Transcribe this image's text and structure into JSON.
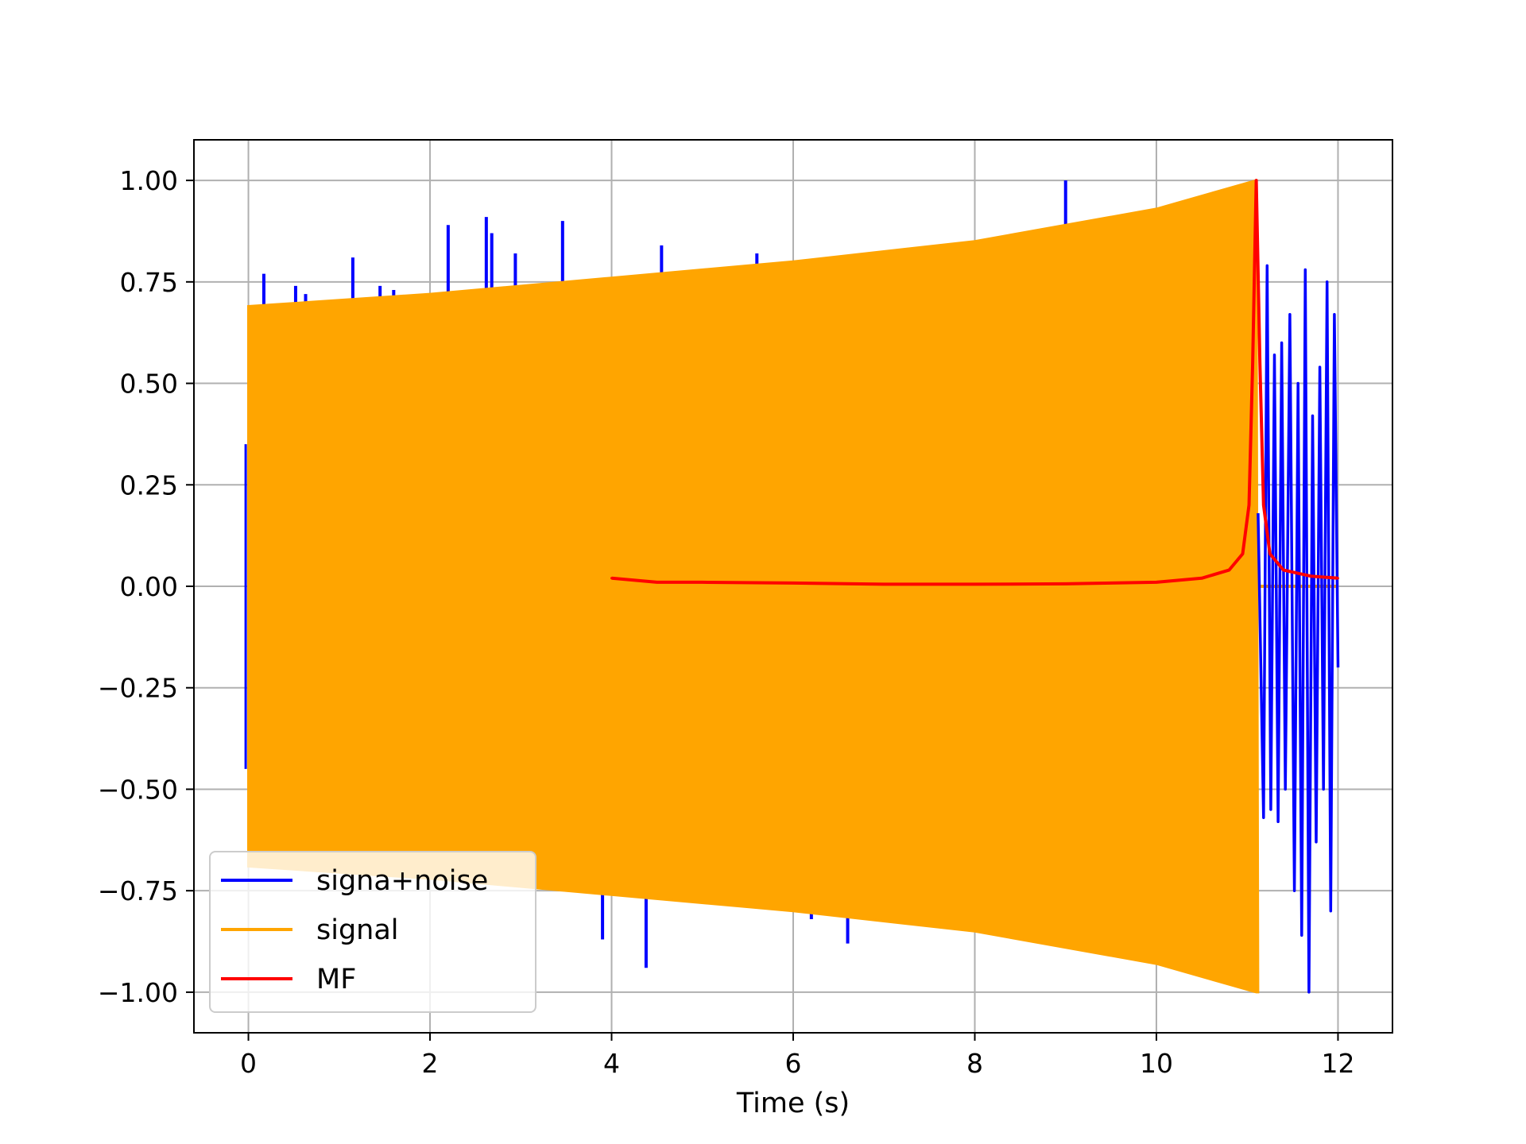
{
  "chart_data": {
    "type": "line",
    "title": "",
    "xlabel": "Time (s)",
    "ylabel": "",
    "xlim": [
      -0.6,
      12.6
    ],
    "ylim": [
      -1.1,
      1.1
    ],
    "xticks": [
      0,
      2,
      4,
      6,
      8,
      10,
      12
    ],
    "xtick_labels": [
      "0",
      "2",
      "4",
      "6",
      "8",
      "10",
      "12"
    ],
    "yticks": [
      1.0,
      0.75,
      0.5,
      0.25,
      0.0,
      -0.25,
      -0.5,
      -0.75,
      -1.0
    ],
    "ytick_labels": [
      "1.00",
      "0.75",
      "0.50",
      "0.25",
      "0.00",
      "−0.25",
      "−0.50",
      "−0.75",
      "−1.00"
    ],
    "grid": true,
    "legend_position": "lower-left",
    "series": [
      {
        "name": "signa+noise",
        "color": "#0000ff",
        "spikes": [
          {
            "x": 0.17,
            "y": 0.77
          },
          {
            "x": 0.52,
            "y": 0.74
          },
          {
            "x": 0.63,
            "y": 0.72
          },
          {
            "x": 1.15,
            "y": 0.81
          },
          {
            "x": 1.45,
            "y": 0.74
          },
          {
            "x": 1.6,
            "y": 0.73
          },
          {
            "x": 2.2,
            "y": 0.89
          },
          {
            "x": 2.62,
            "y": 0.91
          },
          {
            "x": 2.68,
            "y": 0.87
          },
          {
            "x": 2.94,
            "y": 0.82
          },
          {
            "x": 3.46,
            "y": 0.9
          },
          {
            "x": 4.55,
            "y": 0.84
          },
          {
            "x": 5.6,
            "y": 0.82
          },
          {
            "x": 9.0,
            "y": 1.0
          },
          {
            "x": 3.9,
            "y": -0.87
          },
          {
            "x": 4.38,
            "y": -0.94
          },
          {
            "x": 6.2,
            "y": -0.82
          },
          {
            "x": 6.6,
            "y": -0.88
          }
        ],
        "tail": [
          {
            "x": 11.12,
            "y": 0.18
          },
          {
            "x": 11.18,
            "y": -0.57
          },
          {
            "x": 11.22,
            "y": 0.79
          },
          {
            "x": 11.26,
            "y": -0.55
          },
          {
            "x": 11.3,
            "y": 0.57
          },
          {
            "x": 11.34,
            "y": -0.58
          },
          {
            "x": 11.38,
            "y": 0.6
          },
          {
            "x": 11.42,
            "y": -0.5
          },
          {
            "x": 11.47,
            "y": 0.67
          },
          {
            "x": 11.52,
            "y": -0.75
          },
          {
            "x": 11.56,
            "y": 0.5
          },
          {
            "x": 11.6,
            "y": -0.86
          },
          {
            "x": 11.64,
            "y": 0.78
          },
          {
            "x": 11.68,
            "y": -1.0
          },
          {
            "x": 11.72,
            "y": 0.42
          },
          {
            "x": 11.76,
            "y": -0.63
          },
          {
            "x": 11.8,
            "y": 0.54
          },
          {
            "x": 11.84,
            "y": -0.5
          },
          {
            "x": 11.88,
            "y": 0.75
          },
          {
            "x": 11.92,
            "y": -0.8
          },
          {
            "x": 11.96,
            "y": 0.67
          },
          {
            "x": 12.0,
            "y": -0.2
          }
        ]
      },
      {
        "name": "signal",
        "color": "#ffa500",
        "envelope": [
          {
            "x": 0.0,
            "y": 0.69
          },
          {
            "x": 2.0,
            "y": 0.72
          },
          {
            "x": 4.0,
            "y": 0.76
          },
          {
            "x": 6.0,
            "y": 0.8
          },
          {
            "x": 8.0,
            "y": 0.85
          },
          {
            "x": 10.0,
            "y": 0.93
          },
          {
            "x": 11.1,
            "y": 1.0
          }
        ],
        "end_x": 11.12
      },
      {
        "name": "MF",
        "color": "#ff0000",
        "points": [
          {
            "x": 4.0,
            "y": 0.02
          },
          {
            "x": 4.5,
            "y": 0.01
          },
          {
            "x": 5.0,
            "y": 0.01
          },
          {
            "x": 6.0,
            "y": 0.008
          },
          {
            "x": 7.0,
            "y": 0.005
          },
          {
            "x": 8.0,
            "y": 0.005
          },
          {
            "x": 9.0,
            "y": 0.006
          },
          {
            "x": 10.0,
            "y": 0.01
          },
          {
            "x": 10.5,
            "y": 0.02
          },
          {
            "x": 10.8,
            "y": 0.04
          },
          {
            "x": 10.95,
            "y": 0.08
          },
          {
            "x": 11.02,
            "y": 0.2
          },
          {
            "x": 11.06,
            "y": 0.55
          },
          {
            "x": 11.1,
            "y": 1.0
          },
          {
            "x": 11.14,
            "y": 0.55
          },
          {
            "x": 11.18,
            "y": 0.2
          },
          {
            "x": 11.25,
            "y": 0.08
          },
          {
            "x": 11.4,
            "y": 0.04
          },
          {
            "x": 11.7,
            "y": 0.025
          },
          {
            "x": 12.0,
            "y": 0.02
          }
        ]
      }
    ]
  }
}
